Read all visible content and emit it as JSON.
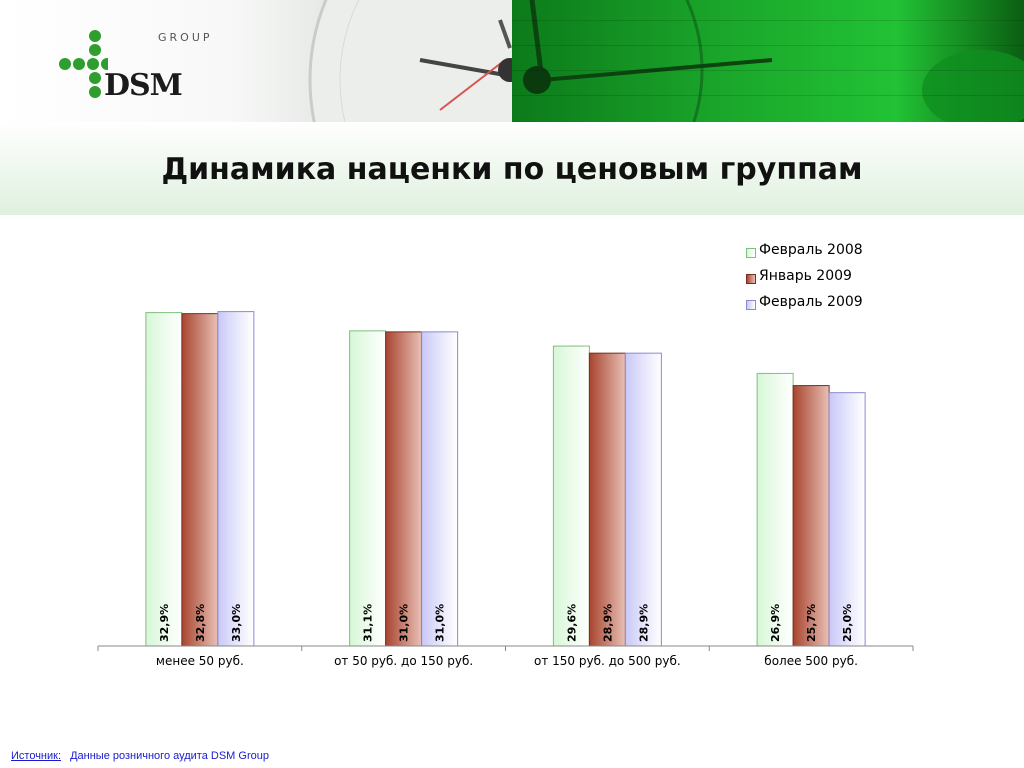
{
  "header": {
    "logo_group_text": "GROUP",
    "logo_brand_text": "DSM"
  },
  "title": "Динамика наценки по ценовым группам",
  "chart_data": {
    "type": "bar",
    "categories": [
      "менее 50 руб.",
      "от 50 руб. до 150 руб.",
      "от 150 руб. до 500 руб.",
      "более 500 руб."
    ],
    "series": [
      {
        "name": "Февраль 2008",
        "values": [
          32.9,
          31.1,
          29.6,
          26.9
        ],
        "labels": [
          "32,9%",
          "31,1%",
          "29,6%",
          "26,9%"
        ],
        "color": "#d6f7d6",
        "stroke": "#7fbf7f"
      },
      {
        "name": "Январь 2009",
        "values": [
          32.8,
          31.0,
          28.9,
          25.7
        ],
        "labels": [
          "32,8%",
          "31,0%",
          "28,9%",
          "25,7%"
        ],
        "color": "#a8452f",
        "stroke": "#7a2e1f"
      },
      {
        "name": "Февраль 2009",
        "values": [
          33.0,
          31.0,
          28.9,
          25.0
        ],
        "labels": [
          "33,0%",
          "31,0%",
          "28,9%",
          "25,0%"
        ],
        "color": "#c8c8f8",
        "stroke": "#8a8ad0"
      }
    ],
    "ylim": [
      0,
      37.5
    ],
    "grid": false,
    "legend_position": "top-right"
  },
  "source": {
    "label": "Источник:",
    "text": "Данные розничного аудита DSM Group"
  },
  "colors": {
    "brand_green": "#2e9e2e",
    "link_blue": "#1a1ad0"
  }
}
